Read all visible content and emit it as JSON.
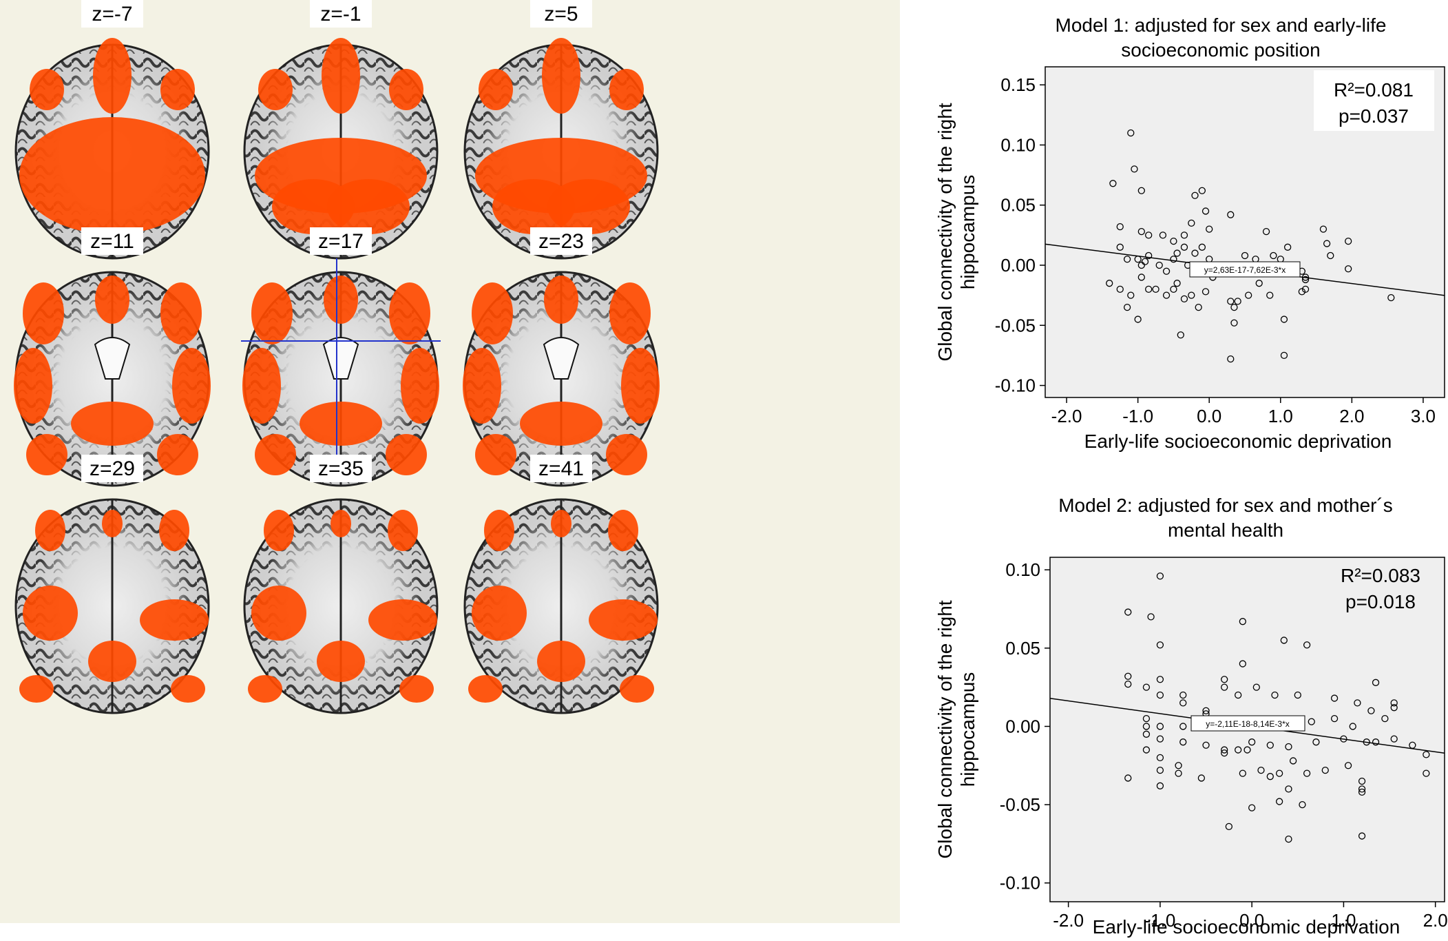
{
  "slices": [
    {
      "label": "z=-7"
    },
    {
      "label": "z=-1"
    },
    {
      "label": "z=5"
    },
    {
      "label": "z=11"
    },
    {
      "label": "z=17"
    },
    {
      "label": "z=23"
    },
    {
      "label": "z=29"
    },
    {
      "label": "z=35"
    },
    {
      "label": "z=41"
    }
  ],
  "colors": {
    "activation": "#ff4a00",
    "panel_bg": "#f3f2e4",
    "plot_bg": "#efefef",
    "crosshair": "#2233cc"
  },
  "chart_data": [
    {
      "type": "scatter",
      "title_lines": [
        "Model 1: adjusted for sex and early-life",
        "socioeconomic position"
      ],
      "xlabel": "Early-life socioeconomic deprivation",
      "ylabel_lines": [
        "Global connectivity of the right",
        "hippocampus"
      ],
      "xlim": [
        -2.3,
        3.3
      ],
      "ylim": [
        -0.11,
        0.165
      ],
      "xticks": [
        -2.0,
        -1.0,
        0.0,
        1.0,
        2.0,
        3.0
      ],
      "xtick_labels": [
        "-2.0",
        "-1.0",
        "0.0",
        "1.0",
        "2.0",
        "3.0"
      ],
      "yticks": [
        0.15,
        0.1,
        0.05,
        0.0,
        -0.05,
        -0.1
      ],
      "ytick_labels": [
        "0.15",
        "0.10",
        "0.05",
        "0.00",
        "-0.05",
        "-0.10"
      ],
      "stat_r2": "R²=0.081",
      "stat_p": "p=0.037",
      "fit_label": "y=2,63E-17-7,62E-3*x",
      "fit": {
        "intercept": 0.0,
        "slope": -0.00762
      },
      "points": [
        [
          -1.1,
          0.11
        ],
        [
          -1.05,
          0.08
        ],
        [
          -1.35,
          0.068
        ],
        [
          -0.95,
          0.062
        ],
        [
          -0.2,
          0.058
        ],
        [
          -0.1,
          0.062
        ],
        [
          -1.25,
          0.032
        ],
        [
          -0.95,
          0.028
        ],
        [
          -0.85,
          0.025
        ],
        [
          -0.65,
          0.025
        ],
        [
          -0.5,
          0.02
        ],
        [
          -0.35,
          0.025
        ],
        [
          -0.25,
          0.035
        ],
        [
          -0.05,
          0.045
        ],
        [
          0.0,
          0.03
        ],
        [
          0.3,
          0.042
        ],
        [
          -1.25,
          0.015
        ],
        [
          -1.15,
          0.005
        ],
        [
          -1.0,
          0.005
        ],
        [
          -0.95,
          0.0
        ],
        [
          -0.9,
          0.003
        ],
        [
          -0.85,
          0.008
        ],
        [
          -0.7,
          0.0
        ],
        [
          -0.6,
          -0.005
        ],
        [
          -0.5,
          0.005
        ],
        [
          -0.45,
          0.01
        ],
        [
          -0.35,
          0.015
        ],
        [
          -0.3,
          0.0
        ],
        [
          -0.2,
          0.01
        ],
        [
          -0.1,
          0.015
        ],
        [
          0.0,
          0.005
        ],
        [
          0.1,
          -0.005
        ],
        [
          0.2,
          0.0
        ],
        [
          0.5,
          0.008
        ],
        [
          0.65,
          0.005
        ],
        [
          0.8,
          0.0
        ],
        [
          0.9,
          0.008
        ],
        [
          1.0,
          0.005
        ],
        [
          1.1,
          0.015
        ],
        [
          1.2,
          0.0
        ],
        [
          1.3,
          -0.005
        ],
        [
          1.35,
          -0.012
        ],
        [
          -1.4,
          -0.015
        ],
        [
          -1.25,
          -0.02
        ],
        [
          -1.1,
          -0.025
        ],
        [
          -0.95,
          -0.01
        ],
        [
          -0.85,
          -0.02
        ],
        [
          -0.75,
          -0.02
        ],
        [
          -0.6,
          -0.025
        ],
        [
          -0.5,
          -0.02
        ],
        [
          -0.45,
          -0.015
        ],
        [
          -0.35,
          -0.028
        ],
        [
          -0.25,
          -0.025
        ],
        [
          -0.15,
          -0.035
        ],
        [
          -0.05,
          -0.022
        ],
        [
          0.05,
          -0.01
        ],
        [
          0.2,
          -0.005
        ],
        [
          0.3,
          -0.03
        ],
        [
          0.35,
          -0.035
        ],
        [
          0.4,
          -0.03
        ],
        [
          0.55,
          -0.025
        ],
        [
          0.7,
          -0.015
        ],
        [
          0.85,
          -0.025
        ],
        [
          1.05,
          -0.045
        ],
        [
          1.35,
          -0.02
        ],
        [
          -1.15,
          -0.035
        ],
        [
          -1.0,
          -0.045
        ],
        [
          -0.4,
          -0.058
        ],
        [
          0.35,
          -0.048
        ],
        [
          0.3,
          -0.078
        ],
        [
          1.05,
          -0.075
        ],
        [
          0.8,
          0.028
        ],
        [
          1.6,
          0.03
        ],
        [
          1.65,
          0.018
        ],
        [
          1.7,
          0.008
        ],
        [
          1.95,
          0.02
        ],
        [
          1.95,
          -0.003
        ],
        [
          2.55,
          -0.027
        ],
        [
          1.3,
          -0.022
        ],
        [
          1.35,
          -0.01
        ]
      ]
    },
    {
      "type": "scatter",
      "title_lines": [
        "Model 2: adjusted for sex and mother´s",
        "mental health"
      ],
      "xlabel": "Early-life socioeconomic deprivation",
      "ylabel_lines": [
        "Global connectivity of the right",
        "hippocampus"
      ],
      "xlim": [
        -2.2,
        2.1
      ],
      "ylim": [
        -0.112,
        0.108
      ],
      "xticks": [
        -2.0,
        -1.0,
        0.0,
        1.0,
        2.0
      ],
      "xtick_labels": [
        "-2.0",
        "-1.0",
        "0.0",
        "1.0",
        "2.0"
      ],
      "yticks": [
        0.1,
        0.05,
        0.0,
        -0.05,
        -0.1
      ],
      "ytick_labels": [
        "0.10",
        "0.05",
        "0.00",
        "-0.05",
        "-0.10"
      ],
      "stat_r2": "R²=0.083",
      "stat_p": "p=0.018",
      "fit_label": "y=-2,11E-18-8,14E-3*x",
      "fit": {
        "intercept": 0.0,
        "slope": -0.00814
      },
      "points": [
        [
          -1.0,
          0.096
        ],
        [
          -1.35,
          0.073
        ],
        [
          -1.1,
          0.07
        ],
        [
          -1.0,
          0.052
        ],
        [
          -0.1,
          0.067
        ],
        [
          0.35,
          0.055
        ],
        [
          0.6,
          0.052
        ],
        [
          -0.1,
          0.04
        ],
        [
          -1.35,
          0.032
        ],
        [
          -1.35,
          0.027
        ],
        [
          -1.15,
          0.025
        ],
        [
          -1.0,
          0.03
        ],
        [
          -1.0,
          0.02
        ],
        [
          -0.75,
          0.02
        ],
        [
          -0.75,
          0.015
        ],
        [
          -0.5,
          0.01
        ],
        [
          -0.5,
          0.008
        ],
        [
          -0.3,
          0.03
        ],
        [
          -0.3,
          0.025
        ],
        [
          -0.15,
          0.02
        ],
        [
          0.05,
          0.025
        ],
        [
          0.25,
          0.02
        ],
        [
          0.5,
          0.02
        ],
        [
          0.9,
          0.018
        ],
        [
          1.15,
          0.015
        ],
        [
          1.35,
          0.028
        ],
        [
          1.55,
          0.015
        ],
        [
          1.55,
          0.012
        ],
        [
          -1.15,
          0.005
        ],
        [
          -1.15,
          0.0
        ],
        [
          -1.0,
          0.0
        ],
        [
          -0.75,
          0.0
        ],
        [
          -0.5,
          0.0
        ],
        [
          -0.3,
          0.0
        ],
        [
          0.0,
          0.0
        ],
        [
          0.25,
          0.0
        ],
        [
          0.45,
          0.0
        ],
        [
          0.65,
          0.003
        ],
        [
          0.9,
          0.005
        ],
        [
          1.1,
          0.0
        ],
        [
          1.3,
          0.01
        ],
        [
          1.45,
          0.005
        ],
        [
          -1.15,
          -0.005
        ],
        [
          -1.0,
          -0.008
        ],
        [
          -0.75,
          -0.01
        ],
        [
          -0.5,
          -0.012
        ],
        [
          -0.3,
          -0.015
        ],
        [
          -0.15,
          -0.015
        ],
        [
          0.0,
          -0.01
        ],
        [
          0.2,
          -0.012
        ],
        [
          0.4,
          -0.013
        ],
        [
          0.7,
          -0.01
        ],
        [
          1.0,
          -0.008
        ],
        [
          1.25,
          -0.01
        ],
        [
          1.35,
          -0.01
        ],
        [
          1.55,
          -0.008
        ],
        [
          1.75,
          -0.012
        ],
        [
          -1.15,
          -0.015
        ],
        [
          -1.0,
          -0.02
        ],
        [
          -0.8,
          -0.025
        ],
        [
          -0.55,
          -0.033
        ],
        [
          -0.3,
          -0.017
        ],
        [
          -0.05,
          -0.015
        ],
        [
          0.1,
          -0.028
        ],
        [
          0.3,
          -0.03
        ],
        [
          0.45,
          -0.022
        ],
        [
          0.6,
          -0.03
        ],
        [
          0.8,
          -0.028
        ],
        [
          1.05,
          -0.025
        ],
        [
          1.2,
          -0.035
        ],
        [
          1.2,
          -0.04
        ],
        [
          1.9,
          -0.018
        ],
        [
          1.9,
          -0.03
        ],
        [
          -1.35,
          -0.033
        ],
        [
          -1.0,
          -0.028
        ],
        [
          -0.8,
          -0.03
        ],
        [
          -1.0,
          -0.038
        ],
        [
          -0.25,
          -0.064
        ],
        [
          0.0,
          -0.052
        ],
        [
          0.2,
          -0.032
        ],
        [
          0.4,
          -0.04
        ],
        [
          0.55,
          -0.05
        ],
        [
          0.4,
          -0.072
        ],
        [
          1.2,
          -0.042
        ],
        [
          1.2,
          -0.07
        ],
        [
          0.3,
          -0.048
        ],
        [
          -0.1,
          -0.03
        ]
      ]
    }
  ]
}
